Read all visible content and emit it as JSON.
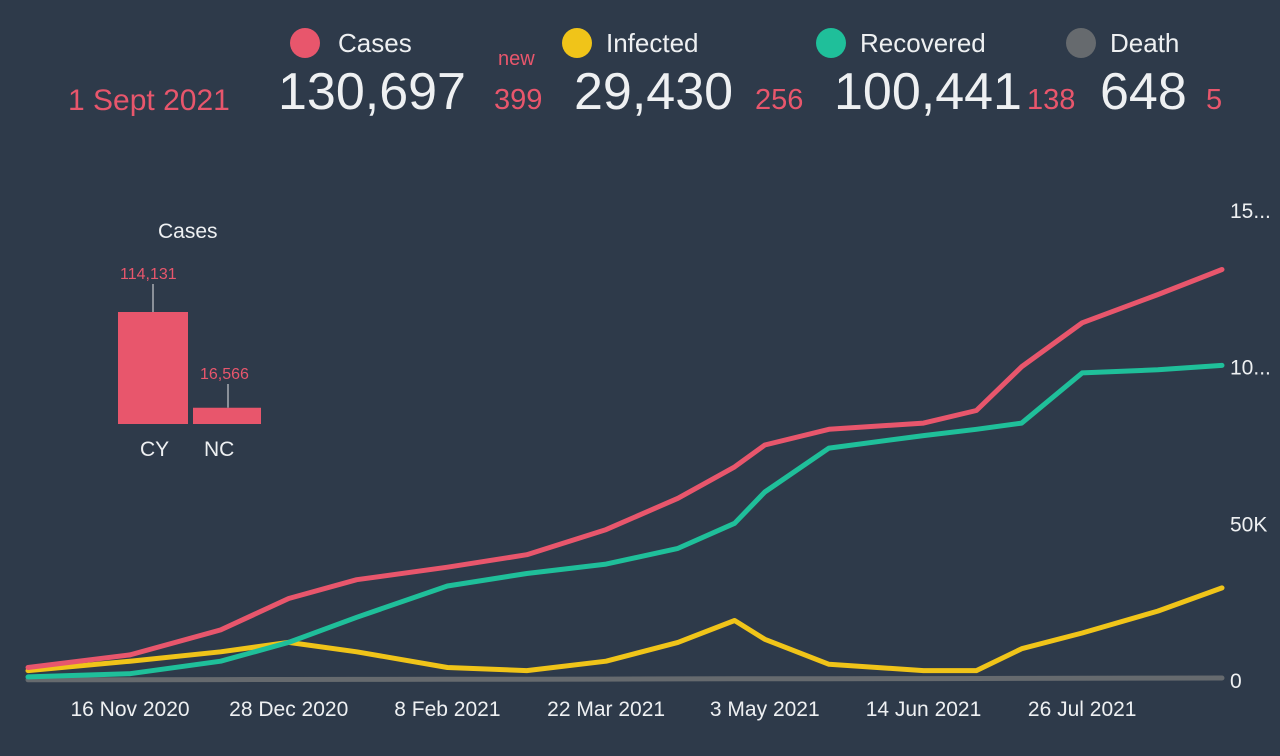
{
  "header": {
    "date": "1 Sept 2021",
    "new_label": "new",
    "stats": [
      {
        "label": "Cases",
        "total": "130,697",
        "new": "399",
        "color": "#e8566c"
      },
      {
        "label": "Infected",
        "total": "29,430",
        "new": "256",
        "color": "#f0c419"
      },
      {
        "label": "Recovered",
        "total": "100,441",
        "new": "138",
        "color": "#1fbf9a"
      },
      {
        "label": "Death",
        "total": "648",
        "new": "5",
        "color": "#666a6e"
      }
    ]
  },
  "inset": {
    "title": "Cases",
    "bars": [
      {
        "label": "CY",
        "value": 114131,
        "value_label": "114,131"
      },
      {
        "label": "NC",
        "value": 16566,
        "value_label": "16,566"
      }
    ]
  },
  "chart_data": [
    {
      "type": "bar",
      "title": "Cases",
      "categories": [
        "CY",
        "NC"
      ],
      "values": [
        114131,
        16566
      ]
    },
    {
      "type": "line",
      "x_tick_labels": [
        "16 Nov 2020",
        "28 Dec 2020",
        "8 Feb 2021",
        "22 Mar 2021",
        "3 May 2021",
        "14 Jun 2021",
        "26 Jul 2021"
      ],
      "y_tick_labels": [
        "0",
        "50K",
        "10...",
        "15..."
      ],
      "ylim": [
        0,
        150000
      ],
      "x": [
        "2020-10-20",
        "2020-11-16",
        "2020-12-10",
        "2020-12-28",
        "2021-01-15",
        "2021-02-08",
        "2021-03-01",
        "2021-03-22",
        "2021-04-10",
        "2021-04-25",
        "2021-05-03",
        "2021-05-20",
        "2021-06-14",
        "2021-06-28",
        "2021-07-10",
        "2021-07-26",
        "2021-08-15",
        "2021-09-01"
      ],
      "series": [
        {
          "name": "Cases",
          "color": "#e8566c",
          "values": [
            4000,
            8000,
            16000,
            26000,
            32000,
            36000,
            40000,
            48000,
            58000,
            68000,
            75000,
            80000,
            82000,
            86000,
            100000,
            114000,
            123000,
            131000
          ]
        },
        {
          "name": "Recovered",
          "color": "#1fbf9a",
          "values": [
            1000,
            2000,
            6000,
            12000,
            20000,
            30000,
            34000,
            37000,
            42000,
            50000,
            60000,
            74000,
            78000,
            80000,
            82000,
            98000,
            99000,
            100400
          ]
        },
        {
          "name": "Infected",
          "color": "#f0c419",
          "values": [
            3000,
            6000,
            9000,
            12000,
            9000,
            4000,
            3000,
            6000,
            12000,
            19000,
            13000,
            5000,
            3000,
            3000,
            10000,
            15000,
            22000,
            29400
          ]
        },
        {
          "name": "Death",
          "color": "#666a6e",
          "values": [
            50,
            80,
            120,
            160,
            200,
            230,
            260,
            300,
            340,
            380,
            400,
            430,
            460,
            480,
            520,
            570,
            620,
            648
          ]
        }
      ]
    }
  ]
}
